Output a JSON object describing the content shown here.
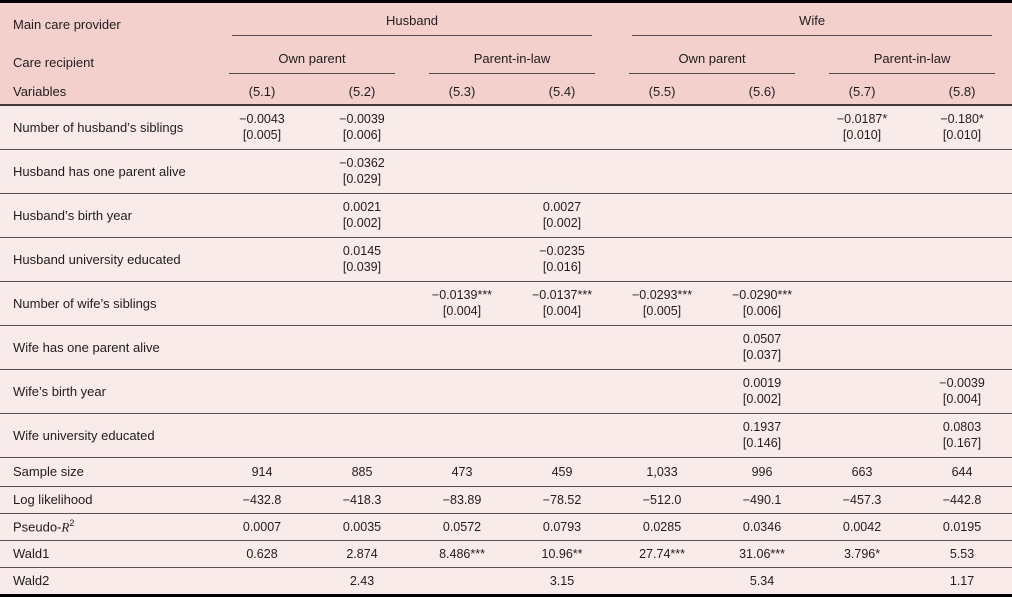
{
  "colors": {
    "header_bg": "#f3d0cc",
    "body_bg": "#f9ebe9",
    "outer_border": "#010101",
    "rule_line": "#55504f"
  },
  "header": {
    "main_care_provider_label": "Main care provider",
    "care_recipient_label": "Care recipient",
    "variables_label": "Variables",
    "groups": [
      {
        "label": "Husband"
      },
      {
        "label": "Wife"
      }
    ],
    "subgroups": [
      {
        "label": "Own parent"
      },
      {
        "label": "Parent-in-law"
      },
      {
        "label": "Own parent"
      },
      {
        "label": "Parent-in-law"
      }
    ],
    "columns": [
      "(5.1)",
      "(5.2)",
      "(5.3)",
      "(5.4)",
      "(5.5)",
      "(5.6)",
      "(5.7)",
      "(5.8)"
    ]
  },
  "coef_rows": [
    {
      "label": "Number of husband’s siblings",
      "cells": [
        {
          "est": "−0.0043",
          "se": "[0.005]"
        },
        {
          "est": "−0.0039",
          "se": "[0.006]"
        },
        {},
        {},
        {},
        {},
        {
          "est": "−0.0187*",
          "se": "[0.010]"
        },
        {
          "est": "−0.180*",
          "se": "[0.010]"
        }
      ]
    },
    {
      "label": "Husband has one parent alive",
      "cells": [
        {},
        {
          "est": "−0.0362",
          "se": "[0.029]"
        },
        {},
        {},
        {},
        {},
        {},
        {}
      ]
    },
    {
      "label": "Husband’s birth year",
      "cells": [
        {},
        {
          "est": "0.0021",
          "se": "[0.002]"
        },
        {},
        {
          "est": "0.0027",
          "se": "[0.002]"
        },
        {},
        {},
        {},
        {}
      ]
    },
    {
      "label": "Husband university educated",
      "cells": [
        {},
        {
          "est": "0.0145",
          "se": "[0.039]"
        },
        {},
        {
          "est": "−0.0235",
          "se": "[0.016]"
        },
        {},
        {},
        {},
        {}
      ]
    },
    {
      "label": "Number of wife’s siblings",
      "cells": [
        {},
        {},
        {
          "est": "−0.0139***",
          "se": "[0.004]"
        },
        {
          "est": "−0.0137***",
          "se": "[0.004]"
        },
        {
          "est": "−0.0293***",
          "se": "[0.005]"
        },
        {
          "est": "−0.0290***",
          "se": "[0.006]"
        },
        {},
        {}
      ]
    },
    {
      "label": "Wife has one parent alive",
      "cells": [
        {},
        {},
        {},
        {},
        {},
        {
          "est": "0.0507",
          "se": "[0.037]"
        },
        {},
        {}
      ]
    },
    {
      "label": "Wife’s birth year",
      "cells": [
        {},
        {},
        {},
        {},
        {},
        {
          "est": "0.0019",
          "se": "[0.002]"
        },
        {},
        {
          "est": "−0.0039",
          "se": "[0.004]"
        }
      ]
    },
    {
      "label": "Wife university educated",
      "cells": [
        {},
        {},
        {},
        {},
        {},
        {
          "est": "0.1937",
          "se": "[0.146]"
        },
        {},
        {
          "est": "0.0803",
          "se": "[0.167]"
        }
      ]
    }
  ],
  "stat_rows": [
    {
      "label": "Sample size",
      "values": [
        "914",
        "885",
        "473",
        "459",
        "1,033",
        "996",
        "663",
        "644"
      ]
    },
    {
      "label": "Log likelihood",
      "values": [
        "−432.8",
        "−418.3",
        "−83.89",
        "−78.52",
        "−512.0",
        "−490.1",
        "−457.3",
        "−442.8"
      ]
    },
    {
      "label_pre": "Pseudo-",
      "label_r": "R",
      "label_sup": "2",
      "values": [
        "0.0007",
        "0.0035",
        "0.0572",
        "0.0793",
        "0.0285",
        "0.0346",
        "0.0042",
        "0.0195"
      ]
    },
    {
      "label": "Wald1",
      "values": [
        "0.628",
        "2.874",
        "8.486***",
        "10.96**",
        "27.74***",
        "31.06***",
        "3.796*",
        "5.53"
      ]
    },
    {
      "label": "Wald2",
      "values": [
        "",
        "2.43",
        "",
        "3.15",
        "",
        "5.34",
        "",
        "1.17"
      ]
    }
  ]
}
